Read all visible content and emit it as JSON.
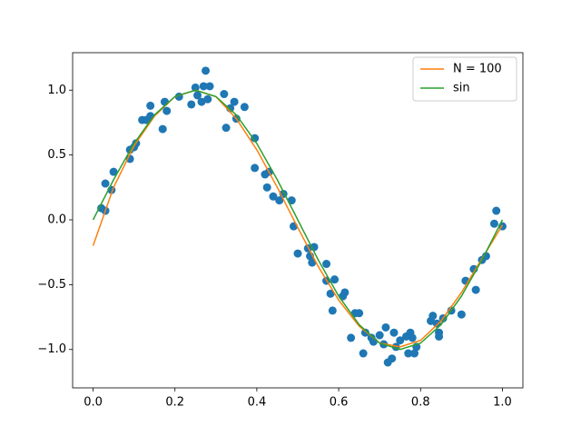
{
  "chart_data": {
    "type": "scatter",
    "x": [
      0.02,
      0.03,
      0.03,
      0.045,
      0.05,
      0.09,
      0.09,
      0.1,
      0.105,
      0.12,
      0.13,
      0.14,
      0.14,
      0.17,
      0.175,
      0.18,
      0.21,
      0.24,
      0.25,
      0.255,
      0.265,
      0.27,
      0.275,
      0.28,
      0.285,
      0.32,
      0.325,
      0.335,
      0.345,
      0.35,
      0.37,
      0.395,
      0.395,
      0.42,
      0.43,
      0.425,
      0.44,
      0.455,
      0.465,
      0.485,
      0.49,
      0.5,
      0.525,
      0.53,
      0.535,
      0.54,
      0.57,
      0.57,
      0.58,
      0.585,
      0.59,
      0.61,
      0.615,
      0.63,
      0.64,
      0.65,
      0.66,
      0.665,
      0.68,
      0.685,
      0.7,
      0.71,
      0.715,
      0.72,
      0.73,
      0.735,
      0.74,
      0.75,
      0.765,
      0.77,
      0.775,
      0.78,
      0.785,
      0.79,
      0.825,
      0.83,
      0.84,
      0.845,
      0.845,
      0.855,
      0.875,
      0.9,
      0.91,
      0.93,
      0.935,
      0.95,
      0.96,
      0.98,
      0.985,
      1.0
    ],
    "values": [
      0.09,
      0.07,
      0.28,
      0.23,
      0.37,
      0.47,
      0.54,
      0.56,
      0.59,
      0.77,
      0.77,
      0.8,
      0.88,
      0.7,
      0.91,
      0.84,
      0.95,
      0.89,
      1.02,
      0.96,
      0.91,
      1.03,
      1.15,
      0.93,
      1.03,
      0.97,
      0.71,
      0.86,
      0.91,
      0.78,
      0.87,
      0.63,
      0.4,
      0.35,
      0.37,
      0.25,
      0.18,
      0.15,
      0.2,
      0.15,
      -0.05,
      -0.26,
      -0.22,
      -0.28,
      -0.33,
      -0.21,
      -0.34,
      -0.47,
      -0.57,
      -0.7,
      -0.46,
      -0.59,
      -0.56,
      -0.91,
      -0.72,
      -0.72,
      -1.03,
      -0.87,
      -0.91,
      -0.94,
      -0.89,
      -0.96,
      -0.83,
      -1.1,
      -1.07,
      -0.87,
      -0.98,
      -0.93,
      -0.9,
      -1.03,
      -0.87,
      -0.91,
      -1.03,
      -0.98,
      -0.78,
      -0.74,
      -0.8,
      -0.87,
      -0.9,
      -0.76,
      -0.7,
      -0.73,
      -0.47,
      -0.38,
      -0.54,
      -0.31,
      -0.28,
      -0.03,
      0.07,
      -0.05
    ],
    "color": "#1f77b4",
    "series": [
      {
        "name": "N = 100",
        "color": "#ff7f0e",
        "x": [
          0,
          0.05,
          0.1,
          0.15,
          0.2,
          0.25,
          0.3,
          0.35,
          0.4,
          0.45,
          0.5,
          0.55,
          0.6,
          0.65,
          0.7,
          0.75,
          0.8,
          0.85,
          0.9,
          0.95,
          1.0
        ],
        "values": [
          -0.2,
          0.25,
          0.57,
          0.8,
          0.95,
          1.0,
          0.95,
          0.78,
          0.54,
          0.25,
          -0.06,
          -0.36,
          -0.62,
          -0.82,
          -0.95,
          -0.98,
          -0.93,
          -0.78,
          -0.56,
          -0.3,
          -0.04
        ]
      },
      {
        "name": "sin",
        "color": "#2ca02c",
        "x": [
          0,
          0.05,
          0.1,
          0.15,
          0.2,
          0.25,
          0.3,
          0.35,
          0.4,
          0.45,
          0.5,
          0.55,
          0.6,
          0.65,
          0.7,
          0.75,
          0.8,
          0.85,
          0.9,
          0.95,
          1.0
        ],
        "values": [
          0,
          0.309,
          0.588,
          0.809,
          0.951,
          1.0,
          0.951,
          0.809,
          0.588,
          0.309,
          0,
          -0.309,
          -0.588,
          -0.809,
          -0.951,
          -1.0,
          -0.951,
          -0.809,
          -0.588,
          -0.309,
          0
        ]
      }
    ],
    "legend": "upper right",
    "xlim": [
      -0.05,
      1.05
    ],
    "ylim": [
      -1.296,
      1.289
    ],
    "xticks": [
      {
        "value": 0,
        "label": "0.0"
      },
      {
        "value": 0.2,
        "label": "0.2"
      },
      {
        "value": 0.4,
        "label": "0.4"
      },
      {
        "value": 0.6,
        "label": "0.6"
      },
      {
        "value": 0.8,
        "label": "0.8"
      },
      {
        "value": 1.0,
        "label": "1.0"
      }
    ],
    "yticks": [
      {
        "value": -1.0,
        "label": "−1.0"
      },
      {
        "value": -0.5,
        "label": "−0.5"
      },
      {
        "value": 0,
        "label": "0.0"
      },
      {
        "value": 0.5,
        "label": "0.5"
      },
      {
        "value": 1.0,
        "label": "1.0"
      }
    ]
  }
}
